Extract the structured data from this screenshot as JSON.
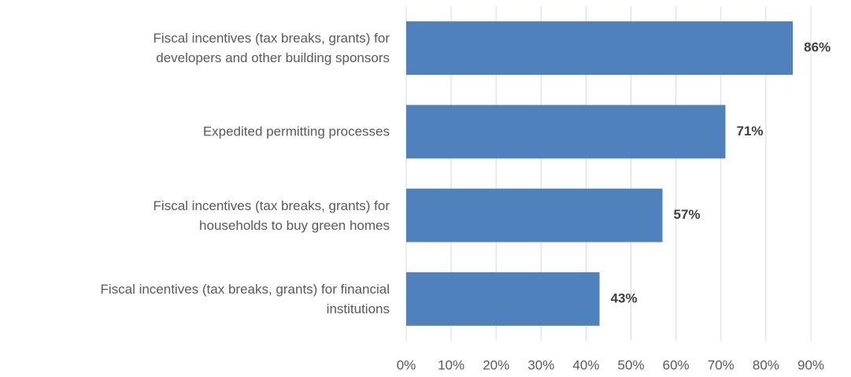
{
  "chart_data": {
    "type": "bar",
    "orientation": "horizontal",
    "categories": [
      "Fiscal incentives (tax breaks, grants) for\ndevelopers and other building sponsors",
      "Expedited permitting processes",
      "Fiscal incentives (tax breaks, grants) for\nhouseholds to buy green homes",
      "Fiscal incentives (tax breaks, grants) for financial\ninstitutions"
    ],
    "values": [
      86,
      71,
      57,
      43
    ],
    "value_labels": [
      "86%",
      "71%",
      "57%",
      "43%"
    ],
    "color": "#4f81bd",
    "xlim": [
      0,
      90
    ],
    "xticks": [
      {
        "value": 0,
        "label": "0%"
      },
      {
        "value": 10,
        "label": "10%"
      },
      {
        "value": 20,
        "label": "20%"
      },
      {
        "value": 30,
        "label": "30%"
      },
      {
        "value": 40,
        "label": "40%"
      },
      {
        "value": 50,
        "label": "50%"
      },
      {
        "value": 60,
        "label": "60%"
      },
      {
        "value": 70,
        "label": "70%"
      },
      {
        "value": 80,
        "label": "80%"
      },
      {
        "value": 90,
        "label": "90%"
      }
    ],
    "grid": true
  }
}
